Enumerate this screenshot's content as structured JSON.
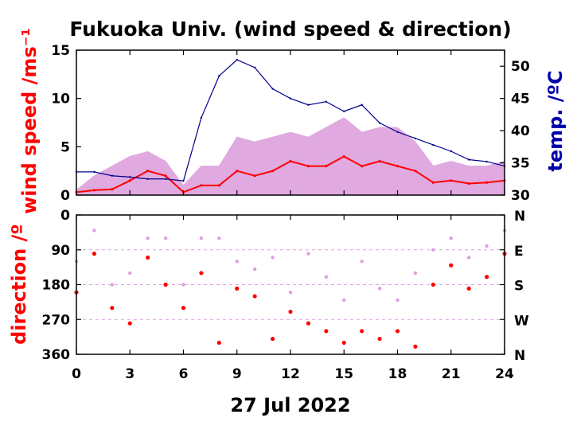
{
  "chart_data": [
    {
      "type": "line",
      "title": "Fukuoka Univ. (wind speed & direction)",
      "ylabel": "wind speed /ms⁻¹",
      "ylabel_right": "temp. /ºC",
      "ylim": [
        0,
        15
      ],
      "ylim_right": [
        30,
        52.5
      ],
      "yticks": [
        0,
        5,
        10,
        15
      ],
      "yticks_right": [
        30,
        35,
        40,
        45,
        50
      ],
      "x": [
        0,
        1,
        2,
        3,
        4,
        5,
        6,
        7,
        8,
        9,
        10,
        11,
        12,
        13,
        14,
        15,
        16,
        17,
        18,
        19,
        20,
        21,
        22,
        23,
        24
      ],
      "series": [
        {
          "role": "wind speed (mean)",
          "color": "#ff0000",
          "values": [
            0.3,
            0.5,
            0.6,
            1.5,
            2.5,
            2.0,
            0.3,
            1.0,
            1.0,
            2.5,
            2.0,
            2.5,
            3.5,
            3.0,
            3.0,
            4.0,
            3.0,
            3.5,
            3.0,
            2.5,
            1.3,
            1.5,
            1.2,
            1.3,
            1.5
          ]
        },
        {
          "role": "wind speed (gust range)",
          "color": "#dda0dd",
          "values": [
            0.5,
            2.0,
            3.0,
            4.0,
            4.5,
            3.5,
            1.0,
            3.0,
            3.0,
            6.0,
            5.5,
            6.0,
            6.5,
            6.0,
            7.0,
            8.0,
            6.5,
            7.0,
            7.0,
            5.5,
            3.0,
            3.5,
            3.0,
            3.0,
            3.5
          ]
        },
        {
          "role": "temperature",
          "color": "#00008b",
          "axis": "right",
          "values": [
            33.6,
            33.6,
            33.0,
            32.8,
            32.5,
            32.5,
            32.2,
            42.0,
            48.5,
            51.0,
            49.8,
            46.5,
            45.0,
            44.0,
            44.5,
            43.0,
            44.0,
            41.2,
            39.8,
            38.8,
            37.8,
            36.8,
            35.5,
            35.2,
            34.5
          ]
        }
      ]
    },
    {
      "type": "scatter",
      "ylabel": "direction /º",
      "ylim": [
        360,
        0
      ],
      "yticks": [
        0,
        90,
        180,
        270,
        360
      ],
      "yticks_right": [
        "N",
        "E",
        "S",
        "W",
        "N"
      ],
      "xlabel": "27 Jul 2022",
      "xlim": [
        0,
        24
      ],
      "xticks": [
        0,
        3,
        6,
        9,
        12,
        15,
        18,
        21,
        24
      ],
      "grid": true,
      "series": [
        {
          "role": "direction (mean)",
          "color": "#ff0000",
          "x": [
            0,
            1,
            2,
            3,
            4,
            5,
            6,
            7,
            8,
            9,
            10,
            11,
            12,
            13,
            14,
            15,
            16,
            17,
            18,
            19,
            20,
            21,
            22,
            23,
            24
          ],
          "values": [
            200,
            100,
            240,
            280,
            110,
            180,
            240,
            150,
            330,
            190,
            210,
            320,
            250,
            280,
            300,
            330,
            300,
            320,
            300,
            340,
            180,
            130,
            190,
            160,
            100
          ]
        },
        {
          "role": "direction (scatter)",
          "color": "#dda0dd",
          "x": [
            0,
            1,
            2,
            3,
            4,
            5,
            6,
            7,
            8,
            9,
            10,
            11,
            12,
            13,
            14,
            15,
            16,
            17,
            18,
            19,
            20,
            21,
            22,
            23,
            24
          ],
          "values": [
            120,
            40,
            180,
            150,
            60,
            60,
            180,
            60,
            60,
            120,
            140,
            110,
            200,
            100,
            160,
            220,
            120,
            190,
            220,
            150,
            90,
            60,
            110,
            80,
            40
          ]
        }
      ]
    }
  ]
}
